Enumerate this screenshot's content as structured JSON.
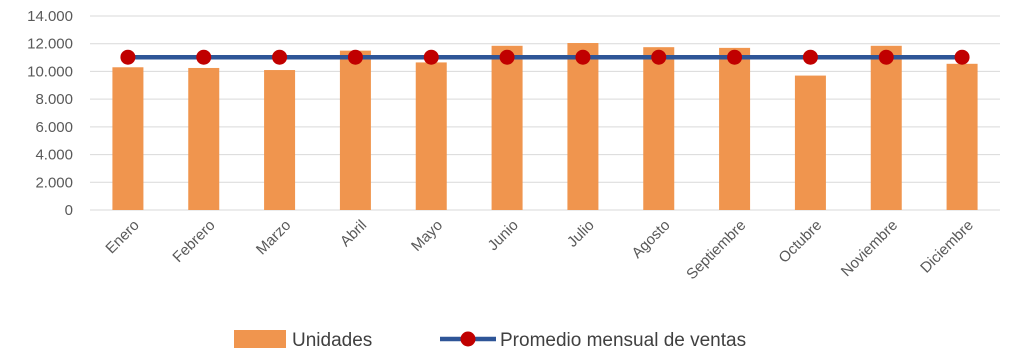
{
  "chart_data": {
    "type": "bar",
    "categories": [
      "Enero",
      "Febrero",
      "Marzo",
      "Abril",
      "Mayo",
      "Junio",
      "Julio",
      "Agosto",
      "Septiembre",
      "Octubre",
      "Noviembre",
      "Diciembre"
    ],
    "series": [
      {
        "name": "Unidades",
        "type": "bar",
        "color": "#f0954e",
        "values": [
          10300,
          10250,
          10100,
          11500,
          10650,
          11850,
          12050,
          11750,
          11700,
          9700,
          11850,
          10550
        ]
      },
      {
        "name": "Promedio mensual de ventas",
        "type": "line",
        "color": "#2e5597",
        "marker_color": "#c00000",
        "values": [
          11025,
          11025,
          11025,
          11025,
          11025,
          11025,
          11025,
          11025,
          11025,
          11025,
          11025,
          11025
        ]
      }
    ],
    "ylim": [
      0,
      14000
    ],
    "yticks": [
      "0",
      "2.000",
      "4.000",
      "6.000",
      "8.000",
      "10.000",
      "12.000",
      "14.000"
    ],
    "grid": true,
    "legend_position": "bottom"
  }
}
